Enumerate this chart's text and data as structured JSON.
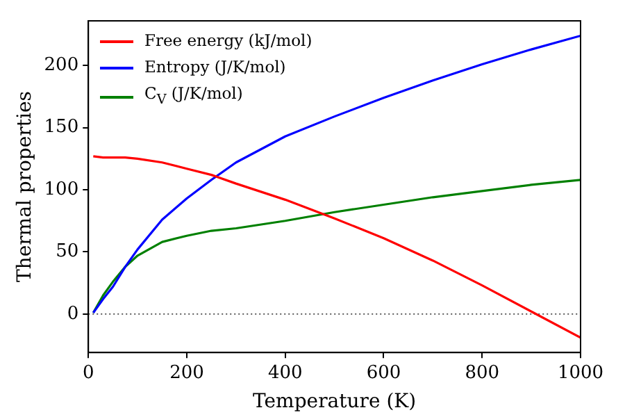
{
  "chart_data": {
    "type": "line",
    "xlabel": "Temperature (K)",
    "ylabel": "Thermal properties",
    "x": [
      10,
      30,
      50,
      75,
      100,
      150,
      200,
      250,
      300,
      400,
      500,
      600,
      700,
      800,
      900,
      1000
    ],
    "series": [
      {
        "name": "Free energy (kJ/mol)",
        "color": "#ff0000",
        "values": [
          127,
          126,
          126,
          126,
          125,
          122,
          117,
          112,
          105,
          92,
          77,
          61,
          43,
          23,
          2,
          -19
        ]
      },
      {
        "name": "Entropy (J/K/mol)",
        "color": "#0000ff",
        "values": [
          1,
          12,
          22,
          38,
          52,
          76,
          93,
          108,
          122,
          143,
          159,
          174,
          188,
          201,
          213,
          224
        ]
      },
      {
        "name": "C$_{V}$ (J/K/mol)",
        "color": "#008000",
        "values": [
          1,
          15,
          26,
          38,
          47,
          58,
          63,
          67,
          69,
          75,
          82,
          88,
          94,
          99,
          104,
          108
        ]
      }
    ],
    "xlim": [
      0,
      1000
    ],
    "xticks": [
      0,
      200,
      400,
      600,
      800,
      1000
    ],
    "ylim": [
      -31,
      236
    ],
    "yticks": [
      0,
      50,
      100,
      150,
      200
    ],
    "ref_lines": [
      {
        "axis": "y",
        "value": 0,
        "color": "#000000",
        "line_style": "dotted"
      }
    ],
    "legend": "top left",
    "grid": false,
    "marker": "none",
    "line_style": "solid"
  }
}
